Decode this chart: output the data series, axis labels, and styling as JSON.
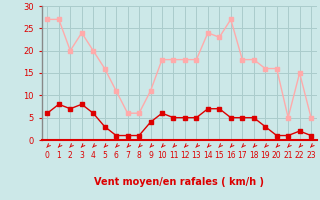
{
  "x": [
    0,
    1,
    2,
    3,
    4,
    5,
    6,
    7,
    8,
    9,
    10,
    11,
    12,
    13,
    14,
    15,
    16,
    17,
    18,
    19,
    20,
    21,
    22,
    23
  ],
  "avg_wind": [
    6,
    8,
    7,
    8,
    6,
    3,
    1,
    1,
    1,
    4,
    6,
    5,
    5,
    5,
    7,
    7,
    5,
    5,
    5,
    3,
    1,
    1,
    2,
    1
  ],
  "gusts": [
    27,
    27,
    20,
    24,
    20,
    16,
    11,
    6,
    6,
    11,
    18,
    18,
    18,
    18,
    24,
    23,
    27,
    18,
    18,
    16,
    16,
    5,
    15,
    5
  ],
  "avg_color": "#dd0000",
  "gust_color": "#ffaaaa",
  "bg_color": "#cce8e8",
  "grid_color": "#aacccc",
  "xlabel": "Vent moyen/en rafales ( km/h )",
  "xlabel_color": "#dd0000",
  "tick_color": "#dd0000",
  "spine_left_color": "#888888",
  "spine_bottom_color": "#dd0000",
  "ylim": [
    0,
    30
  ],
  "yticks": [
    0,
    5,
    10,
    15,
    20,
    25,
    30
  ],
  "xlim": [
    -0.5,
    23.5
  ],
  "marker": "s",
  "markersize": 2.5,
  "linewidth": 1.0,
  "arrow_color": "#dd0000"
}
